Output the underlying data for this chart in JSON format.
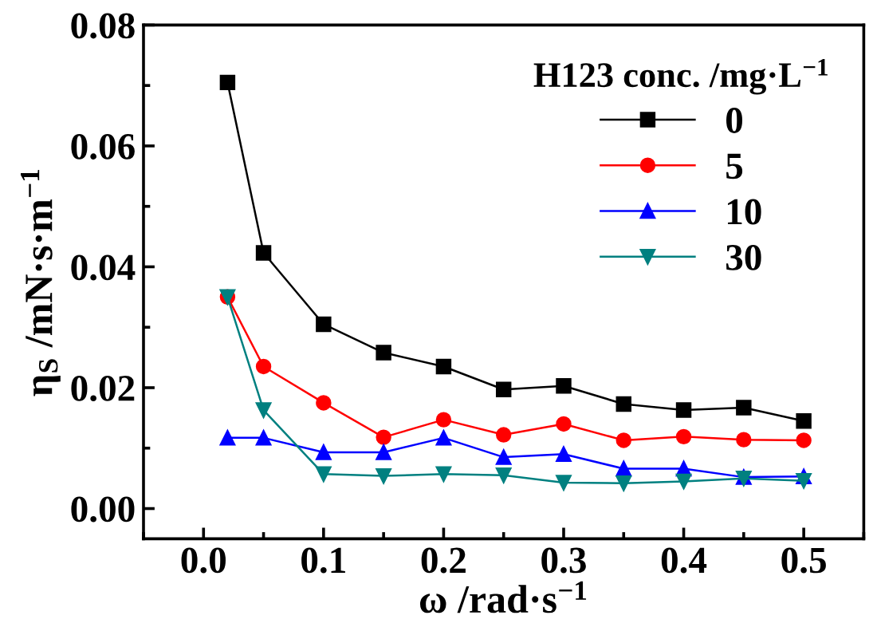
{
  "chart_data": {
    "type": "line",
    "xlabel": "ω /rad·s$^{−1}$",
    "ylabel": "η$_{S}$ /mN·s·m$^{−1}$",
    "legend_title": "H123 conc. /mg·L$^{−1}$",
    "x": [
      0.02,
      0.05,
      0.1,
      0.15,
      0.2,
      0.25,
      0.3,
      0.35,
      0.4,
      0.45,
      0.5
    ],
    "series": [
      {
        "name": "0",
        "color": "#000000",
        "marker": "square",
        "values": [
          0.0705,
          0.0423,
          0.0305,
          0.0258,
          0.0235,
          0.0197,
          0.0203,
          0.0173,
          0.0163,
          0.0167,
          0.0145
        ]
      },
      {
        "name": "5",
        "color": "#ff0000",
        "marker": "circle",
        "values": [
          0.035,
          0.0235,
          0.0175,
          0.0118,
          0.0147,
          0.0122,
          0.014,
          0.0113,
          0.0119,
          0.0114,
          0.0113
        ]
      },
      {
        "name": "10",
        "color": "#0000ff",
        "marker": "triangle",
        "values": [
          0.0117,
          0.0117,
          0.0093,
          0.0093,
          0.0117,
          0.0085,
          0.009,
          0.0066,
          0.0066,
          0.0052,
          0.0053
        ]
      },
      {
        "name": "30",
        "color": "#008080",
        "marker": "triangle_down",
        "values": [
          0.035,
          0.0163,
          0.0057,
          0.0054,
          0.0057,
          0.0055,
          0.0043,
          0.0042,
          0.0045,
          0.005,
          0.0046
        ]
      }
    ],
    "xlim": [
      -0.05,
      0.55
    ],
    "xticks": [
      {
        "value": 0.0,
        "label": "0.0"
      },
      0.1,
      0.2,
      0.3,
      0.4,
      0.5
    ],
    "ylim": [
      -0.005,
      0.08
    ],
    "yticks": [
      {
        "value": 0.0,
        "label": "0.00"
      },
      {
        "value": 0.02,
        "label": "0.02"
      },
      {
        "value": 0.04,
        "label": "0.04"
      },
      {
        "value": 0.06,
        "label": "0.06"
      },
      {
        "value": 0.08,
        "label": "0.08"
      }
    ],
    "grid": false,
    "legend": "top right",
    "line_style": "solid"
  }
}
